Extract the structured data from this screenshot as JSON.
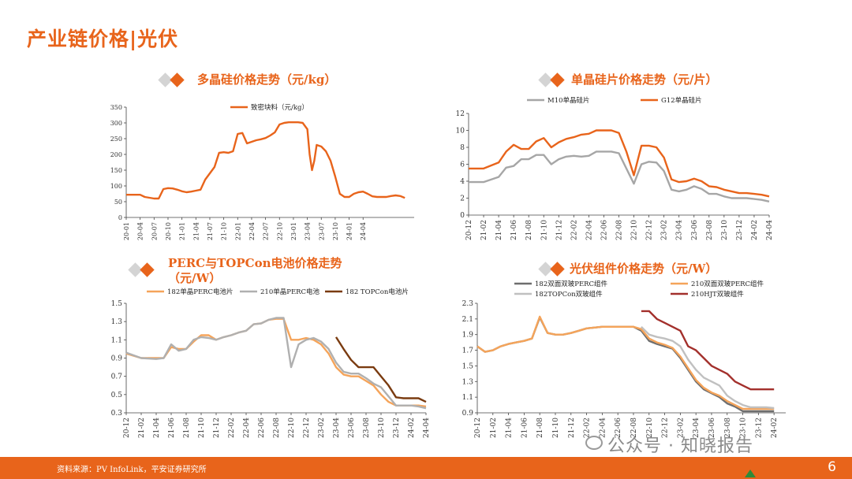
{
  "page": {
    "title": "产业链价格|光伏",
    "source": "资料来源：PV InfoLink，平安证券研究所",
    "page_number": "6",
    "watermark": "公众号 · 知晓报告",
    "accent_color": "#e8641b"
  },
  "chart_data": [
    {
      "type": "line",
      "title": "多晶硅价格走势（元/kg）",
      "ylim": [
        0,
        350
      ],
      "yticks": [
        0,
        50,
        100,
        150,
        200,
        250,
        300,
        350
      ],
      "xticks": [
        "20-01",
        "20-04",
        "20-07",
        "20-10",
        "21-01",
        "21-04",
        "21-07",
        "21-10",
        "22-01",
        "22-04",
        "22-07",
        "22-10",
        "23-01",
        "23-04",
        "23-07",
        "23-10",
        "24-01",
        "24-04"
      ],
      "x": [
        0,
        3,
        4,
        6,
        7,
        8,
        9,
        10,
        11,
        12,
        13,
        14,
        15,
        16,
        17,
        18,
        19,
        20,
        21,
        22,
        23,
        24,
        25,
        26,
        27,
        28,
        29,
        30,
        31,
        32,
        33,
        34,
        35,
        36,
        37,
        38,
        39,
        39.5,
        40,
        40.5,
        41,
        42,
        43,
        44,
        45,
        46,
        47,
        48,
        49,
        50,
        51,
        52,
        53,
        54,
        55,
        56,
        57,
        58,
        59,
        60,
        61,
        62
      ],
      "series": [
        {
          "name": "致密块料（元/kg）",
          "color": "#e8641b",
          "values": [
            72,
            72,
            65,
            60,
            60,
            90,
            93,
            92,
            88,
            83,
            80,
            82,
            85,
            88,
            120,
            140,
            160,
            205,
            207,
            205,
            210,
            265,
            268,
            235,
            240,
            245,
            248,
            252,
            260,
            270,
            295,
            300,
            302,
            302,
            302,
            300,
            280,
            200,
            150,
            180,
            230,
            225,
            210,
            180,
            130,
            75,
            65,
            65,
            75,
            80,
            82,
            75,
            67,
            65,
            65,
            65,
            68,
            70,
            68,
            62,
            0,
            0
          ]
        }
      ]
    },
    {
      "type": "line",
      "title": "单晶硅片价格走势（元/片）",
      "ylim": [
        0,
        12
      ],
      "yticks": [
        0,
        2,
        4,
        6,
        8,
        10,
        12
      ],
      "xticks": [
        "20-12",
        "21-02",
        "21-04",
        "21-06",
        "21-08",
        "21-10",
        "21-12",
        "22-02",
        "22-04",
        "22-06",
        "22-08",
        "22-10",
        "22-12",
        "23-02",
        "23-04",
        "23-06",
        "23-08",
        "23-10",
        "23-12",
        "24-02",
        "24-04"
      ],
      "x": [
        0,
        2,
        4,
        5,
        6,
        7,
        8,
        9,
        10,
        11,
        12,
        13,
        14,
        15,
        16,
        17,
        18,
        19,
        20,
        21,
        22,
        23,
        24,
        25,
        26,
        27,
        28,
        29,
        30,
        31,
        32,
        33,
        34,
        35,
        36,
        37,
        38,
        39,
        40
      ],
      "series": [
        {
          "name": "M10单晶硅片",
          "color": "#a6a6a6",
          "values": [
            3.9,
            3.9,
            4.5,
            5.6,
            5.8,
            6.6,
            6.6,
            7.1,
            7.1,
            6.0,
            6.6,
            6.9,
            7.0,
            6.9,
            7.0,
            7.5,
            7.5,
            7.5,
            7.3,
            5.5,
            3.7,
            6.0,
            6.3,
            6.2,
            5.2,
            3.0,
            2.8,
            3.0,
            3.4,
            3.1,
            2.5,
            2.5,
            2.2,
            2.0,
            2.0,
            2.0,
            1.9,
            1.8,
            1.6
          ]
        },
        {
          "name": "G12单晶硅片",
          "color": "#e8641b",
          "values": [
            5.5,
            5.5,
            6.2,
            7.5,
            8.3,
            7.8,
            7.8,
            8.7,
            9.1,
            8.0,
            8.6,
            9.0,
            9.2,
            9.5,
            9.6,
            10.0,
            10.0,
            10.0,
            9.7,
            7.5,
            4.7,
            8.2,
            8.2,
            8.0,
            6.8,
            4.2,
            3.9,
            4.0,
            4.3,
            4.0,
            3.4,
            3.3,
            3.0,
            2.8,
            2.6,
            2.6,
            2.5,
            2.4,
            2.2
          ]
        }
      ]
    },
    {
      "type": "line",
      "title": "PERC与TOPCon电池价格走势（元/W）",
      "ylim": [
        0.3,
        1.5
      ],
      "yticks": [
        0.3,
        0.5,
        0.7,
        0.9,
        1.1,
        1.3,
        1.5
      ],
      "xticks": [
        "20-12",
        "21-02",
        "21-04",
        "21-06",
        "21-08",
        "21-10",
        "21-12",
        "22-02",
        "22-04",
        "22-06",
        "22-08",
        "22-10",
        "22-12",
        "23-02",
        "23-04",
        "23-06",
        "23-08",
        "23-10",
        "23-12",
        "24-02",
        "24-04"
      ],
      "x": [
        0,
        2,
        4,
        5,
        6,
        7,
        8,
        9,
        10,
        11,
        12,
        13,
        14,
        15,
        16,
        17,
        18,
        19,
        20,
        21,
        22,
        23,
        24,
        25,
        26,
        27,
        28,
        29,
        30,
        31,
        32,
        33,
        34,
        35,
        36,
        37,
        38,
        39,
        40
      ],
      "series": [
        {
          "name": "182单晶PERC电池片",
          "color": "#f5a45a",
          "values": [
            0.95,
            0.9,
            0.9,
            0.9,
            1.02,
            1.0,
            1.0,
            1.08,
            1.15,
            1.15,
            1.1,
            1.13,
            1.15,
            1.18,
            1.2,
            1.27,
            1.28,
            1.32,
            1.33,
            1.33,
            1.1,
            1.1,
            1.12,
            1.1,
            1.05,
            0.95,
            0.8,
            0.72,
            0.7,
            0.7,
            0.65,
            0.6,
            0.5,
            0.42,
            0.38,
            0.38,
            0.38,
            0.38,
            0.37
          ]
        },
        {
          "name": "210单晶PERC电池",
          "color": "#b0b0b0",
          "values": [
            0.96,
            0.9,
            0.89,
            0.9,
            1.05,
            0.98,
            1.0,
            1.1,
            1.13,
            1.12,
            1.1,
            1.13,
            1.15,
            1.18,
            1.2,
            1.27,
            1.28,
            1.32,
            1.34,
            1.34,
            0.8,
            1.05,
            1.1,
            1.12,
            1.08,
            1.0,
            0.85,
            0.75,
            0.73,
            0.73,
            0.68,
            0.62,
            0.58,
            0.48,
            0.38,
            0.38,
            0.38,
            0.37,
            0.35
          ]
        },
        {
          "name": "182 TOPCon电池片",
          "color": "#7a3b10",
          "x": [
            28,
            29,
            30,
            31,
            32,
            33,
            34,
            35,
            36,
            37,
            38,
            39,
            40
          ],
          "values": [
            1.13,
            1.0,
            0.88,
            0.8,
            0.8,
            0.8,
            0.7,
            0.6,
            0.47,
            0.46,
            0.46,
            0.46,
            0.42
          ]
        }
      ]
    },
    {
      "type": "line",
      "title": "光伏组件价格走势（元/W）",
      "ylim": [
        0.9,
        2.3
      ],
      "yticks": [
        0.9,
        1.1,
        1.3,
        1.5,
        1.7,
        1.9,
        2.1,
        2.3
      ],
      "xticks": [
        "20-12",
        "21-02",
        "21-04",
        "21-06",
        "21-08",
        "21-10",
        "21-12",
        "22-02",
        "22-04",
        "22-06",
        "22-08",
        "22-10",
        "22-12",
        "23-02",
        "23-04",
        "23-06",
        "23-08",
        "23-10",
        "23-12",
        "24-02"
      ],
      "x": [
        0,
        1,
        2,
        3,
        4,
        5,
        6,
        7,
        8,
        9,
        10,
        11,
        12,
        13,
        14,
        15,
        16,
        17,
        18,
        19,
        20,
        21,
        22,
        23,
        24,
        25,
        26,
        27,
        28,
        29,
        30,
        31,
        32,
        33,
        34,
        35,
        36,
        37,
        38
      ],
      "series": [
        {
          "name": "182双面双玻PERC组件",
          "color": "#6e6e6e",
          "values": [
            1.75,
            1.68,
            1.7,
            1.75,
            1.78,
            1.8,
            1.82,
            1.85,
            2.12,
            1.92,
            1.9,
            1.9,
            1.92,
            1.95,
            1.98,
            1.99,
            2.0,
            2.0,
            2.0,
            2.0,
            2.0,
            1.95,
            1.82,
            1.78,
            1.75,
            1.72,
            1.6,
            1.45,
            1.3,
            1.2,
            1.15,
            1.1,
            1.02,
            0.98,
            0.92,
            0.92,
            0.92,
            0.92,
            0.92
          ]
        },
        {
          "name": "210双面双玻PERC组件",
          "color": "#f5a45a",
          "values": [
            1.75,
            1.68,
            1.7,
            1.75,
            1.78,
            1.8,
            1.82,
            1.85,
            2.13,
            1.92,
            1.9,
            1.9,
            1.92,
            1.95,
            1.98,
            1.99,
            2.0,
            2.0,
            2.0,
            2.0,
            2.0,
            1.97,
            1.85,
            1.8,
            1.77,
            1.73,
            1.62,
            1.47,
            1.32,
            1.22,
            1.16,
            1.12,
            1.05,
            1.0,
            0.95,
            0.95,
            0.95,
            0.95,
            0.95
          ]
        },
        {
          "name": "182TOPCon双玻组件",
          "color": "#c0c0c0",
          "x": [
            21,
            22,
            23,
            24,
            25,
            26,
            27,
            28,
            29,
            30,
            31,
            32,
            33,
            34,
            35,
            36,
            37,
            38
          ],
          "values": [
            2.0,
            1.9,
            1.87,
            1.85,
            1.82,
            1.75,
            1.58,
            1.45,
            1.35,
            1.3,
            1.25,
            1.12,
            1.05,
            1.0,
            0.97,
            0.97,
            0.97,
            0.96
          ]
        },
        {
          "name": "210HJT双玻组件",
          "color": "#a3302c",
          "x": [
            21,
            22,
            23,
            24,
            25,
            26,
            27,
            28,
            29,
            30,
            31,
            32,
            33,
            34,
            35,
            36,
            37,
            38
          ],
          "values": [
            2.2,
            2.2,
            2.1,
            2.05,
            2.0,
            1.95,
            1.75,
            1.7,
            1.6,
            1.5,
            1.45,
            1.4,
            1.3,
            1.25,
            1.2,
            1.2,
            1.2,
            1.2
          ]
        }
      ]
    }
  ]
}
